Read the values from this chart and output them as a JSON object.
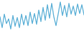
{
  "values": [
    68,
    52,
    72,
    58,
    65,
    50,
    70,
    54,
    67,
    52,
    72,
    56,
    70,
    55,
    75,
    58,
    73,
    57,
    78,
    61,
    82,
    63,
    86,
    66,
    88,
    68,
    55,
    72,
    90,
    70,
    85,
    68,
    88,
    72,
    84,
    70,
    87,
    73,
    86,
    71
  ],
  "line_color": "#5aafd6",
  "background_color": "#ffffff",
  "linewidth": 0.9
}
